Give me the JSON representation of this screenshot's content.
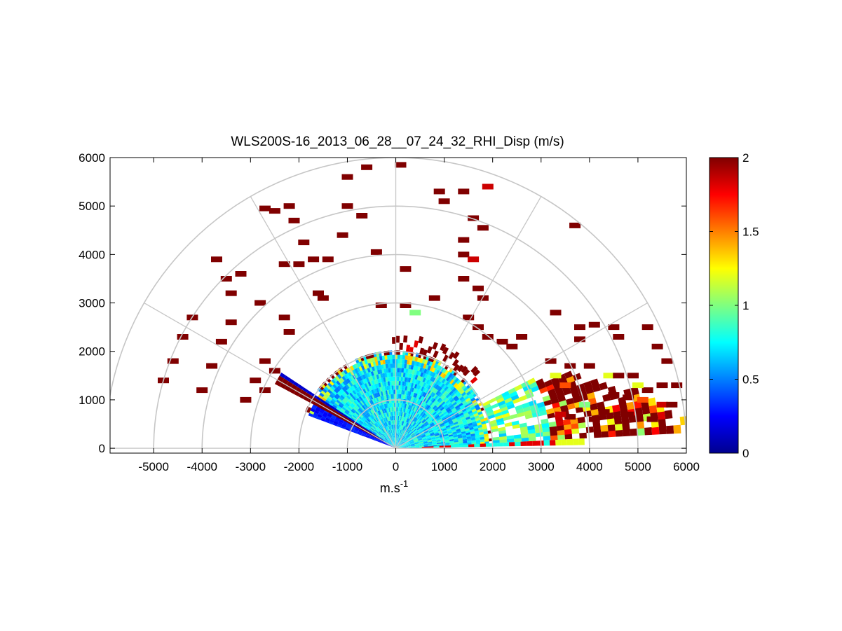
{
  "chart_data": {
    "type": "heatmap",
    "subtype": "polar-rhi-sector",
    "title": "WLS200S-16_2013_06_28__07_24_32_RHI_Disp (m/s)",
    "xlabel": "m.s",
    "xlabel_superscript": "-1",
    "ylabel": "",
    "xlim": [
      -5900,
      6000
    ],
    "ylim": [
      -100,
      6000
    ],
    "x_ticks": [
      -5000,
      -4000,
      -3000,
      -2000,
      -1000,
      0,
      1000,
      2000,
      3000,
      4000,
      5000,
      6000
    ],
    "y_ticks": [
      0,
      1000,
      2000,
      3000,
      4000,
      5000,
      6000
    ],
    "range_rings_m": [
      1000,
      2000,
      3000,
      4000,
      5000,
      6000
    ],
    "spokes_deg": [
      0,
      30,
      60,
      90,
      120,
      150
    ],
    "colorbar": {
      "colormap": "jet",
      "min": 0,
      "max": 2,
      "ticks": [
        0,
        0.5,
        1,
        1.5,
        2
      ]
    },
    "scan_sector_deg": [
      1,
      158
    ],
    "dense_region": {
      "ranges_m": [
        [
          0,
          2000
        ],
        [
          2000,
          3200
        ],
        [
          3200,
          6000
        ]
      ],
      "typical_values": [
        0.7,
        1.0,
        2.0
      ]
    },
    "cells": [
      {
        "x": -4800,
        "y": 1400,
        "v": 2
      },
      {
        "x": -4600,
        "y": 1800,
        "v": 2
      },
      {
        "x": -4400,
        "y": 2300,
        "v": 2
      },
      {
        "x": -4200,
        "y": 2700,
        "v": 2
      },
      {
        "x": -4000,
        "y": 1200,
        "v": 2
      },
      {
        "x": -3800,
        "y": 1700,
        "v": 2
      },
      {
        "x": -3600,
        "y": 2200,
        "v": 2
      },
      {
        "x": -3400,
        "y": 2600,
        "v": 2
      },
      {
        "x": -3100,
        "y": 1000,
        "v": 2
      },
      {
        "x": -2900,
        "y": 1400,
        "v": 2
      },
      {
        "x": -2700,
        "y": 1800,
        "v": 2
      },
      {
        "x": -2700,
        "y": 1200,
        "v": 2
      },
      {
        "x": -2500,
        "y": 1600,
        "v": 2
      },
      {
        "x": -3700,
        "y": 3900,
        "v": 2
      },
      {
        "x": -3500,
        "y": 3500,
        "v": 2
      },
      {
        "x": -3200,
        "y": 3600,
        "v": 2
      },
      {
        "x": -3400,
        "y": 3200,
        "v": 2
      },
      {
        "x": -2800,
        "y": 3000,
        "v": 2
      },
      {
        "x": -2300,
        "y": 2700,
        "v": 2
      },
      {
        "x": -2200,
        "y": 2400,
        "v": 2
      },
      {
        "x": -2700,
        "y": 4950,
        "v": 2
      },
      {
        "x": -2500,
        "y": 4900,
        "v": 2
      },
      {
        "x": -2200,
        "y": 5000,
        "v": 2
      },
      {
        "x": -2100,
        "y": 4700,
        "v": 2
      },
      {
        "x": -1900,
        "y": 4250,
        "v": 2
      },
      {
        "x": -2000,
        "y": 3800,
        "v": 2
      },
      {
        "x": -2300,
        "y": 3800,
        "v": 2
      },
      {
        "x": -1700,
        "y": 3900,
        "v": 2
      },
      {
        "x": -1600,
        "y": 3200,
        "v": 2
      },
      {
        "x": -1500,
        "y": 3100,
        "v": 2
      },
      {
        "x": -1400,
        "y": 3900,
        "v": 2
      },
      {
        "x": -1100,
        "y": 4400,
        "v": 2
      },
      {
        "x": -1000,
        "y": 5000,
        "v": 2
      },
      {
        "x": -700,
        "y": 4800,
        "v": 2
      },
      {
        "x": -1000,
        "y": 5600,
        "v": 2
      },
      {
        "x": -600,
        "y": 5800,
        "v": 2
      },
      {
        "x": -400,
        "y": 4050,
        "v": 2
      },
      {
        "x": -300,
        "y": 2950,
        "v": 2
      },
      {
        "x": 200,
        "y": 2950,
        "v": 2
      },
      {
        "x": 400,
        "y": 2800,
        "v": 1.0
      },
      {
        "x": 200,
        "y": 3700,
        "v": 2
      },
      {
        "x": 100,
        "y": 5850,
        "v": 2
      },
      {
        "x": 900,
        "y": 5300,
        "v": 2
      },
      {
        "x": 1000,
        "y": 5100,
        "v": 2
      },
      {
        "x": 1400,
        "y": 5300,
        "v": 2
      },
      {
        "x": 1600,
        "y": 4750,
        "v": 2
      },
      {
        "x": 1800,
        "y": 4550,
        "v": 2
      },
      {
        "x": 1400,
        "y": 4300,
        "v": 2
      },
      {
        "x": 1400,
        "y": 4000,
        "v": 2
      },
      {
        "x": 1600,
        "y": 3900,
        "v": 1.85
      },
      {
        "x": 1900,
        "y": 5400,
        "v": 1.85
      },
      {
        "x": 1400,
        "y": 3500,
        "v": 2
      },
      {
        "x": 1700,
        "y": 3300,
        "v": 2
      },
      {
        "x": 1800,
        "y": 3100,
        "v": 2
      },
      {
        "x": 800,
        "y": 3100,
        "v": 2
      },
      {
        "x": 1500,
        "y": 2700,
        "v": 2
      },
      {
        "x": 1700,
        "y": 2500,
        "v": 2
      },
      {
        "x": 1900,
        "y": 2300,
        "v": 2
      },
      {
        "x": 2200,
        "y": 2200,
        "v": 2
      },
      {
        "x": 2400,
        "y": 2100,
        "v": 2
      },
      {
        "x": 2600,
        "y": 2300,
        "v": 2
      },
      {
        "x": 3300,
        "y": 2800,
        "v": 2
      },
      {
        "x": 3800,
        "y": 2500,
        "v": 2
      },
      {
        "x": 3700,
        "y": 4600,
        "v": 2
      },
      {
        "x": 3800,
        "y": 2250,
        "v": 2
      },
      {
        "x": 4100,
        "y": 2550,
        "v": 2
      },
      {
        "x": 4500,
        "y": 2500,
        "v": 2
      },
      {
        "x": 5200,
        "y": 2500,
        "v": 2
      },
      {
        "x": 4600,
        "y": 2300,
        "v": 2
      },
      {
        "x": 5400,
        "y": 2100,
        "v": 2
      },
      {
        "x": 5600,
        "y": 1800,
        "v": 2
      },
      {
        "x": 5800,
        "y": 1300,
        "v": 2
      },
      {
        "x": 5500,
        "y": 1300,
        "v": 2
      },
      {
        "x": 5200,
        "y": 1200,
        "v": 2
      },
      {
        "x": 5000,
        "y": 1300,
        "v": 1.2
      },
      {
        "x": 4800,
        "y": 1050,
        "v": 2
      },
      {
        "x": 4500,
        "y": 1100,
        "v": 2
      },
      {
        "x": 4300,
        "y": 750,
        "v": 2
      },
      {
        "x": 4100,
        "y": 600,
        "v": 2
      },
      {
        "x": 4800,
        "y": 700,
        "v": 2
      },
      {
        "x": 5300,
        "y": 600,
        "v": 2
      },
      {
        "x": 5500,
        "y": 900,
        "v": 1.85
      },
      {
        "x": 5700,
        "y": 900,
        "v": 2
      },
      {
        "x": 5100,
        "y": 1000,
        "v": 1.6
      },
      {
        "x": 4400,
        "y": 1500,
        "v": 1.2
      },
      {
        "x": 4600,
        "y": 1500,
        "v": 2
      },
      {
        "x": 4900,
        "y": 1500,
        "v": 2
      },
      {
        "x": 3500,
        "y": 1300,
        "v": 1.6
      },
      {
        "x": 3300,
        "y": 1500,
        "v": 1.2
      },
      {
        "x": 3200,
        "y": 1800,
        "v": 2
      },
      {
        "x": 3600,
        "y": 1700,
        "v": 2
      },
      {
        "x": 4000,
        "y": 1700,
        "v": 2
      },
      {
        "x": 3900,
        "y": 900,
        "v": 1.0
      },
      {
        "x": 3600,
        "y": 650,
        "v": 2
      },
      {
        "x": 3400,
        "y": 700,
        "v": 1.85
      }
    ]
  }
}
